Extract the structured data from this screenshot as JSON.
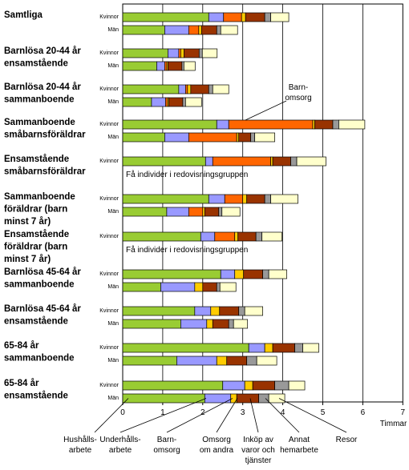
{
  "chart_data": {
    "type": "bar",
    "orientation": "horizontal",
    "stacked": true,
    "x_label": "Timmar",
    "x_ticks": [
      "0",
      "1",
      "2",
      "3",
      "4",
      "5",
      "6",
      "7"
    ],
    "xlim": [
      0,
      7
    ],
    "grid": "vertical",
    "segments": [
      {
        "name": "Hushålls-\narbete",
        "color": "#99cc33"
      },
      {
        "name": "Underhålls-\narbete",
        "color": "#9999ff"
      },
      {
        "name": "Barn-\nomsorg",
        "color": "#ff6600"
      },
      {
        "name": "Omsorg\nom andra",
        "color": "#ffcc00"
      },
      {
        "name": "Inköp av\nvaror och\ntjänster",
        "color": "#993300"
      },
      {
        "name": "Annat\nhemarbete",
        "color": "#999999"
      },
      {
        "name": "Resor",
        "color": "#ffffcc"
      }
    ],
    "groups": [
      {
        "label": "Samtliga",
        "rows": [
          {
            "sex": "Kvinnor",
            "values": [
              2.15,
              0.37,
              0.45,
              0.1,
              0.48,
              0.15,
              0.45
            ]
          },
          {
            "sex": "Män",
            "values": [
              1.05,
              0.6,
              0.25,
              0.07,
              0.38,
              0.1,
              0.42
            ]
          }
        ]
      },
      {
        "label": "Barnlösa 20-44 år\nensamstående",
        "rows": [
          {
            "sex": "Kvinnor",
            "values": [
              1.13,
              0.27,
              0.05,
              0.08,
              0.38,
              0.08,
              0.37
            ]
          },
          {
            "sex": "Män",
            "values": [
              0.85,
              0.2,
              0.05,
              0.03,
              0.35,
              0.05,
              0.28
            ]
          }
        ]
      },
      {
        "label": "Barnlösa 20-44 år\nsammanboende",
        "rows": [
          {
            "sex": "Kvinnor",
            "values": [
              1.4,
              0.17,
              0.05,
              0.08,
              0.45,
              0.1,
              0.4
            ]
          },
          {
            "sex": "Män",
            "values": [
              0.72,
              0.35,
              0.05,
              0.03,
              0.35,
              0.07,
              0.4
            ]
          }
        ]
      },
      {
        "label": "Sammanboende\nsmåbarnsföräldrar",
        "rows": [
          {
            "sex": "Kvinnor",
            "values": [
              2.35,
              0.3,
              2.1,
              0.05,
              0.45,
              0.15,
              0.65
            ]
          },
          {
            "sex": "Män",
            "values": [
              1.05,
              0.6,
              1.2,
              0.05,
              0.3,
              0.1,
              0.5
            ]
          }
        ]
      },
      {
        "label": "Ensamstående\nsmåbarnsföräldrar",
        "note": "Få individer i redovisningsgruppen",
        "rows": [
          {
            "sex": "Kvinnor",
            "values": [
              2.07,
              0.18,
              1.45,
              0.05,
              0.45,
              0.15,
              0.73
            ]
          }
        ]
      },
      {
        "label": "Sammanboende\nföräldrar (barn\nminst 7 år)",
        "rows": [
          {
            "sex": "Kvinnor",
            "values": [
              2.15,
              0.4,
              0.45,
              0.1,
              0.45,
              0.15,
              0.68
            ]
          },
          {
            "sex": "Män",
            "values": [
              1.1,
              0.55,
              0.35,
              0.05,
              0.35,
              0.08,
              0.45
            ]
          }
        ]
      },
      {
        "label": "Ensamstående\nföräldrar (barn\nminst 7 år)",
        "note": "Få individer i redovisningsgruppen",
        "rows": [
          {
            "sex": "Kvinnor",
            "values": [
              1.95,
              0.35,
              0.5,
              0.08,
              0.45,
              0.15,
              0.5
            ]
          }
        ]
      },
      {
        "label": "Barnlösa 45-64 år\nsammanboende",
        "rows": [
          {
            "sex": "Kvinnor",
            "values": [
              2.45,
              0.35,
              0.0,
              0.22,
              0.48,
              0.15,
              0.45
            ]
          },
          {
            "sex": "Män",
            "values": [
              0.95,
              0.85,
              0.0,
              0.2,
              0.35,
              0.08,
              0.4
            ]
          }
        ]
      },
      {
        "label": "Barnlösa 45-64 år\nensamstående",
        "rows": [
          {
            "sex": "Kvinnor",
            "values": [
              1.8,
              0.4,
              0.0,
              0.22,
              0.48,
              0.15,
              0.45
            ]
          },
          {
            "sex": "Män",
            "values": [
              1.45,
              0.65,
              0.0,
              0.15,
              0.4,
              0.12,
              0.35
            ]
          }
        ]
      },
      {
        "label": "65-84 år\nsammanboende",
        "rows": [
          {
            "sex": "Kvinnor",
            "values": [
              3.15,
              0.4,
              0.0,
              0.2,
              0.55,
              0.2,
              0.4
            ]
          },
          {
            "sex": "Män",
            "values": [
              1.35,
              1.0,
              0.0,
              0.25,
              0.5,
              0.25,
              0.5
            ]
          }
        ]
      },
      {
        "label": "65-84 år\nensamstående",
        "rows": [
          {
            "sex": "Kvinnor",
            "values": [
              2.5,
              0.55,
              0.0,
              0.2,
              0.55,
              0.35,
              0.4
            ]
          },
          {
            "sex": "Män",
            "values": [
              2.05,
              0.65,
              0.0,
              0.15,
              0.55,
              0.25,
              0.4
            ]
          }
        ]
      }
    ],
    "annotation": "Barn-\nomsorg"
  }
}
